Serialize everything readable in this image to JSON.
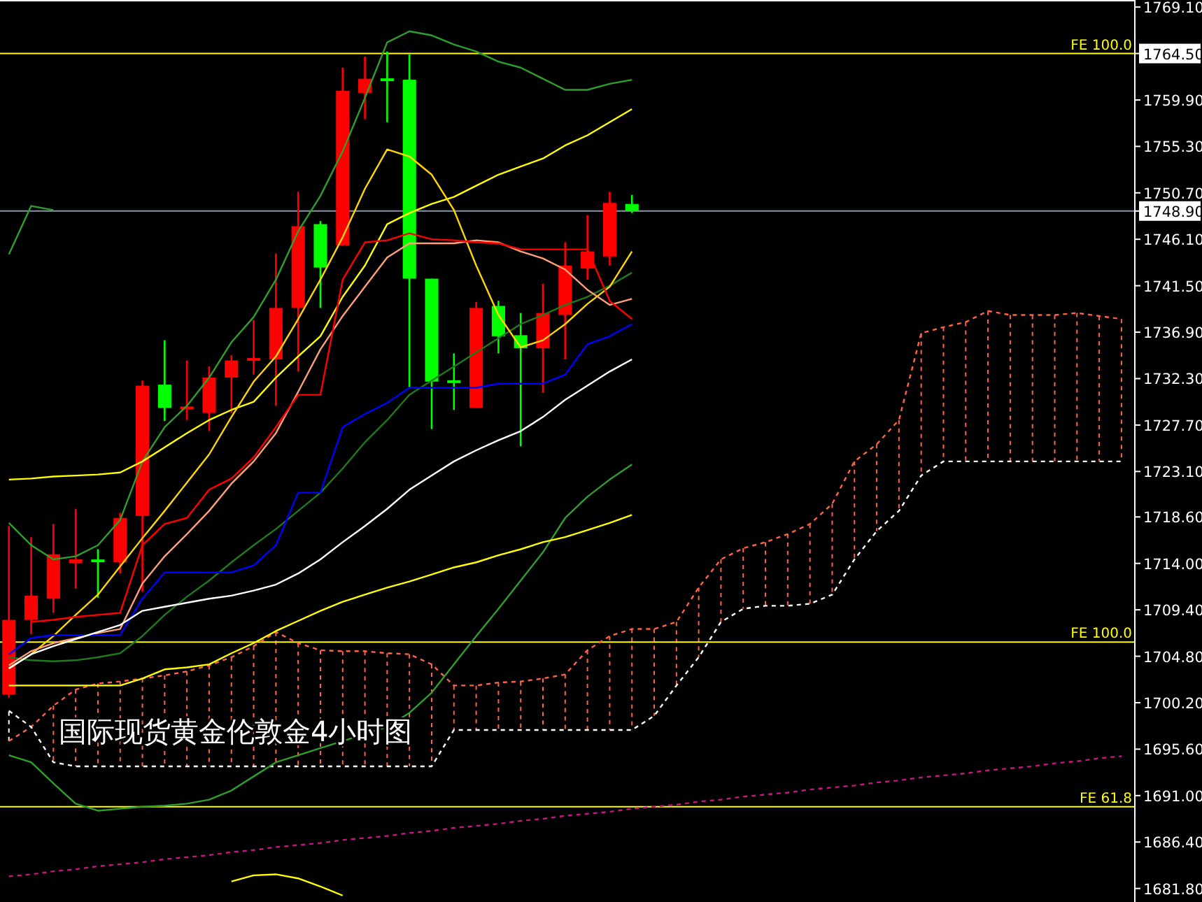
{
  "chart_data": {
    "type": "candlestick",
    "title": "国际现货黄金伦敦金4小时图",
    "categories": [
      null,
      null,
      null,
      null,
      null,
      null,
      null,
      null,
      null,
      null,
      null,
      null,
      null,
      null,
      null,
      null,
      null,
      null,
      null,
      null,
      null,
      null,
      null,
      null,
      null,
      null,
      null,
      null,
      null,
      null,
      null,
      null,
      null,
      null,
      null,
      null,
      null,
      null,
      null,
      null,
      null,
      null,
      null,
      null,
      null,
      null,
      null,
      null,
      null,
      null,
      null
    ],
    "ohlc": [
      [
        1701.0,
        1717.7,
        1700.7,
        1708.4
      ],
      [
        1708.4,
        1716.6,
        1707.0,
        1710.8
      ],
      [
        1710.5,
        1717.9,
        1709.1,
        1714.9
      ],
      [
        1714.0,
        1719.4,
        1711.5,
        1714.4
      ],
      [
        1714.3,
        1715.4,
        1710.6,
        1714.2
      ],
      [
        1714.1,
        1719.0,
        1713.0,
        1718.5
      ],
      [
        1718.7,
        1732.1,
        1711.2,
        1731.6
      ],
      [
        1731.7,
        1736.1,
        1728.1,
        1729.4
      ],
      [
        1729.3,
        1734.1,
        1728.2,
        1729.5
      ],
      [
        1728.9,
        1733.5,
        1727.1,
        1732.4
      ],
      [
        1732.4,
        1734.6,
        1728.9,
        1734.1
      ],
      [
        1734.1,
        1738.1,
        1732.7,
        1734.3
      ],
      [
        1734.2,
        1744.7,
        1729.6,
        1739.3
      ],
      [
        1739.3,
        1750.8,
        1733.0,
        1747.4
      ],
      [
        1747.6,
        1747.9,
        1739.3,
        1743.3
      ],
      [
        1745.5,
        1763.1,
        1745.5,
        1760.8
      ],
      [
        1760.6,
        1764.2,
        1758.0,
        1762.0
      ],
      [
        1762.0,
        1764.7,
        1757.7,
        1761.8
      ],
      [
        1761.9,
        1764.4,
        1731.4,
        1742.2
      ],
      [
        1742.2,
        1742.2,
        1727.3,
        1732.0
      ],
      [
        1732.1,
        1734.8,
        1729.2,
        1731.9
      ],
      [
        1729.4,
        1739.9,
        1729.4,
        1739.3
      ],
      [
        1739.5,
        1740.0,
        1734.8,
        1736.5
      ],
      [
        1736.6,
        1738.8,
        1725.6,
        1735.3
      ],
      [
        1735.3,
        1741.7,
        1730.9,
        1738.8
      ],
      [
        1738.6,
        1745.8,
        1734.2,
        1743.5
      ],
      [
        1743.2,
        1748.5,
        1742.1,
        1744.9
      ],
      [
        1744.4,
        1750.8,
        1743.5,
        1749.7
      ],
      [
        1749.6,
        1750.5,
        1748.7,
        1748.9
      ],
      null,
      null,
      null,
      null,
      null,
      null,
      null,
      null,
      null,
      null,
      null,
      null,
      null,
      null,
      null,
      null,
      null,
      null,
      null,
      null,
      null,
      null
    ],
    "colors": [
      "#ff0000",
      "#ff0000",
      "#ff0000",
      "#ff0000",
      "#00ff00",
      "#ff0000",
      "#ff0000",
      "#00ff00",
      "#ff0000",
      "#ff0000",
      "#ff0000",
      "#ff0000",
      "#ff0000",
      "#ff0000",
      "#00ff00",
      "#ff0000",
      "#ff0000",
      "#00ff00",
      "#00ff00",
      "#00ff00",
      "#00ff00",
      "#ff0000",
      "#00ff00",
      "#00ff00",
      "#ff0000",
      "#ff0000",
      "#ff0000",
      "#ff0000",
      "#00ff00",
      null,
      null,
      null,
      null,
      null,
      null,
      null,
      null,
      null,
      null,
      null,
      null,
      null,
      null,
      null,
      null,
      null,
      null,
      null,
      null,
      null,
      null
    ],
    "series": [
      {
        "type": "line",
        "color": "#ff6347",
        "line_style": "dashed",
        "values": [
          1696.4,
          1697.8,
          1699.9,
          1701.5,
          1702.1,
          1702.3,
          1702.6,
          1702.9,
          1703.3,
          1703.9,
          1704.7,
          1705.8,
          1707.2,
          1706.1,
          1705.4,
          1705.3,
          1705.3,
          1705.1,
          1705.0,
          1704.0,
          1701.9,
          1701.9,
          1702.2,
          1702.3,
          1702.6,
          1703.0,
          1705.4,
          1706.8,
          1707.5,
          1707.5,
          1708.2,
          1711.6,
          1714.4,
          1715.5,
          1716.1,
          1716.9,
          1717.9,
          1719.9,
          1724.1,
          1725.8,
          1728.2,
          1736.8,
          1737.4,
          1737.9,
          1739.0,
          1738.6,
          1738.6,
          1738.6,
          1738.8,
          1738.5,
          1738.2
        ]
      },
      {
        "type": "line",
        "color": "#ffffff",
        "line_style": "dashed",
        "values": [
          1699.4,
          1697.8,
          1694.3,
          1693.9,
          1693.9,
          1693.9,
          1693.9,
          1693.9,
          1693.9,
          1693.9,
          1693.9,
          1693.9,
          1693.9,
          1693.9,
          1693.9,
          1693.9,
          1693.9,
          1693.9,
          1693.9,
          1693.9,
          1697.5,
          1697.5,
          1697.5,
          1697.5,
          1697.5,
          1697.5,
          1697.5,
          1697.5,
          1697.5,
          1698.9,
          1701.9,
          1704.7,
          1708.2,
          1709.5,
          1709.8,
          1709.8,
          1710.0,
          1710.9,
          1714.4,
          1717.2,
          1719.2,
          1722.7,
          1724.1,
          1724.1,
          1724.1,
          1724.1,
          1724.1,
          1724.1,
          1724.1,
          1724.1,
          1724.1
        ]
      },
      {
        "type": "line",
        "color": "#c71585",
        "line_style": "dashed",
        "values": [
          1683.0,
          1683.2,
          1683.5,
          1683.7,
          1684.0,
          1684.2,
          1684.4,
          1684.7,
          1684.9,
          1685.1,
          1685.4,
          1685.6,
          1685.9,
          1686.1,
          1686.3,
          1686.6,
          1686.8,
          1687.0,
          1687.3,
          1687.5,
          1687.8,
          1688.0,
          1688.2,
          1688.5,
          1688.7,
          1689.0,
          1689.2,
          1689.4,
          1689.7,
          1689.9,
          1690.1,
          1690.4,
          1690.6,
          1690.9,
          1691.1,
          1691.3,
          1691.6,
          1691.8,
          1692.0,
          1692.3,
          1692.5,
          1692.8,
          1693.0,
          1693.2,
          1693.5,
          1693.7,
          1693.9,
          1694.2,
          1694.4,
          1694.7,
          1694.9
        ]
      },
      {
        "type": "line",
        "color": "#2f9e2f",
        "values": [
          1718.0,
          1715.8,
          1714.4,
          1714.7,
          1715.8,
          1718.3,
          1724.1,
          1727.5,
          1729.6,
          1732.4,
          1735.9,
          1738.4,
          1742.1,
          1746.9,
          1750.4,
          1754.8,
          1760.1,
          1765.6,
          1766.7,
          1766.3,
          1765.4,
          1764.7,
          1763.7,
          1763.1,
          1762.0,
          1760.9,
          1760.9,
          1761.5,
          1761.9,
          null,
          null,
          null,
          null,
          null,
          null,
          null,
          null,
          null,
          null,
          null,
          null,
          null,
          null,
          null,
          null,
          null,
          null,
          null,
          null,
          null,
          null
        ]
      },
      {
        "type": "line",
        "color": "#2f9e2f",
        "values": [
          1744.6,
          1749.4,
          1749.0,
          null,
          null,
          null,
          null,
          null,
          null,
          null,
          null,
          null,
          null,
          null,
          null,
          null,
          null,
          null,
          null,
          null,
          null,
          null,
          null,
          null,
          null,
          null,
          null,
          null,
          null,
          null,
          null,
          null,
          null,
          null,
          null,
          null,
          null,
          null,
          null,
          null,
          null,
          null,
          null,
          null,
          null,
          null,
          null,
          null,
          null,
          null,
          null
        ]
      },
      {
        "type": "line",
        "color": "#2f9e2f",
        "values": [
          1695.0,
          1694.3,
          1692.2,
          1690.2,
          1689.5,
          1689.7,
          1689.9,
          1690.0,
          1690.2,
          1690.6,
          1691.5,
          1692.9,
          1694.3,
          1695.0,
          1695.7,
          1696.4,
          1697.1,
          1697.8,
          1699.2,
          1701.2,
          1704.0,
          1706.8,
          1709.5,
          1712.3,
          1715.1,
          1718.5,
          1720.6,
          1722.3,
          1723.8,
          null,
          null,
          null,
          null,
          null,
          null,
          null,
          null,
          null,
          null,
          null,
          null,
          null,
          null,
          null,
          null,
          null,
          null,
          null,
          null,
          null,
          null
        ]
      },
      {
        "type": "line",
        "color": "#1f7a1f",
        "values": [
          1704.7,
          1704.4,
          1704.3,
          1704.4,
          1704.7,
          1705.1,
          1706.8,
          1708.9,
          1710.7,
          1712.3,
          1714.1,
          1715.8,
          1717.4,
          1719.2,
          1721.0,
          1723.4,
          1726.0,
          1728.2,
          1730.7,
          1732.1,
          1733.5,
          1734.9,
          1736.3,
          1737.7,
          1738.6,
          1739.6,
          1740.4,
          1741.5,
          1742.8,
          null,
          null,
          null,
          null,
          null,
          null,
          null,
          null,
          null,
          null,
          null,
          null,
          null,
          null,
          null,
          null,
          null,
          null,
          null,
          null,
          null,
          null
        ]
      },
      {
        "type": "line",
        "color": "#ffff00",
        "values": [
          1701.9,
          1701.9,
          1701.9,
          1701.9,
          1701.9,
          1701.9,
          1702.6,
          1703.5,
          1703.7,
          1704.0,
          1705.1,
          1706.1,
          1707.3,
          1708.3,
          1709.3,
          1710.2,
          1710.9,
          1711.6,
          1712.2,
          1712.9,
          1713.6,
          1714.1,
          1714.8,
          1715.4,
          1716.1,
          1716.6,
          1717.3,
          1718.0,
          1718.8,
          null,
          null,
          null,
          null,
          null,
          null,
          null,
          null,
          null,
          null,
          null,
          null,
          null,
          null,
          null,
          null,
          null,
          null,
          null,
          null,
          null,
          null
        ]
      },
      {
        "type": "line",
        "color": "#ffff00",
        "values": [
          null,
          null,
          null,
          null,
          null,
          null,
          null,
          null,
          null,
          null,
          1682.5,
          1683.1,
          1683.2,
          1682.8,
          1682.0,
          1681.1,
          null,
          null,
          null,
          null,
          null,
          null,
          null,
          null,
          null,
          null,
          null,
          null,
          null,
          null,
          null,
          null,
          null,
          null,
          null,
          null,
          null,
          null,
          null,
          null,
          null,
          null,
          null,
          null,
          null,
          null,
          null,
          null,
          null,
          null,
          null
        ]
      },
      {
        "type": "line",
        "color": "#ffff00",
        "values": [
          1722.3,
          1722.4,
          1722.6,
          1722.7,
          1722.8,
          1723.0,
          1724.1,
          1725.5,
          1726.9,
          1728.2,
          1729.2,
          1730.0,
          1732.4,
          1734.5,
          1736.5,
          1740.4,
          1743.5,
          1747.6,
          1748.7,
          1749.6,
          1750.3,
          1751.4,
          1752.5,
          1753.3,
          1754.1,
          1755.4,
          1756.4,
          1757.7,
          1759.0,
          null,
          null,
          null,
          null,
          null,
          null,
          null,
          null,
          null,
          null,
          null,
          null,
          null,
          null,
          null,
          null,
          null,
          null,
          null,
          null,
          null,
          null
        ]
      },
      {
        "type": "line",
        "color": "#ffd700",
        "values": [
          1703.6,
          1705.0,
          1706.8,
          1708.9,
          1710.9,
          1713.7,
          1716.5,
          1719.2,
          1722.0,
          1724.8,
          1728.5,
          1732.0,
          1734.5,
          1738.2,
          1742.1,
          1746.3,
          1751.1,
          1755.0,
          1754.3,
          1752.5,
          1749.0,
          1743.5,
          1738.6,
          1735.4,
          1736.1,
          1737.7,
          1739.7,
          1741.4,
          1744.9,
          null,
          null,
          null,
          null,
          null,
          null,
          null,
          null,
          null,
          null,
          null,
          null,
          null,
          null,
          null,
          null,
          null,
          null,
          null,
          null,
          null,
          null
        ]
      },
      {
        "type": "line",
        "color": "#ffa07a",
        "values": [
          1703.9,
          1705.3,
          1706.1,
          1706.6,
          1707.1,
          1707.5,
          1712.0,
          1714.7,
          1716.9,
          1719.2,
          1721.9,
          1724.1,
          1726.9,
          1731.0,
          1735.2,
          1738.5,
          1741.4,
          1744.3,
          1745.7,
          1745.7,
          1745.7,
          1746.0,
          1745.8,
          1744.9,
          1744.2,
          1743.1,
          1741.1,
          1739.6,
          1740.2,
          null,
          null,
          null,
          null,
          null,
          null,
          null,
          null,
          null,
          null,
          null,
          null,
          null,
          null,
          null,
          null,
          null,
          null,
          null,
          null,
          null,
          null
        ]
      },
      {
        "type": "line",
        "color": "#ff0000",
        "values": [
          null,
          1708.2,
          1708.4,
          1708.7,
          1708.9,
          1709.1,
          1715.8,
          1717.9,
          1718.5,
          1721.3,
          1722.4,
          1724.5,
          1727.5,
          1730.7,
          1730.7,
          1742.1,
          1745.8,
          1746.0,
          1746.7,
          1746.1,
          1746.0,
          1745.8,
          1745.7,
          1745.1,
          1745.1,
          1745.1,
          1745.1,
          1740.0,
          1738.2,
          null,
          null,
          null,
          null,
          null,
          null,
          null,
          null,
          null,
          null,
          null,
          null,
          null,
          null,
          null,
          null,
          null,
          null,
          null,
          null,
          null,
          null
        ]
      },
      {
        "type": "line",
        "color": "#0000ff",
        "values": [
          1705.0,
          1706.6,
          1706.9,
          1706.9,
          1706.9,
          1706.9,
          1710.5,
          1713.1,
          1713.1,
          1713.1,
          1713.1,
          1713.8,
          1715.8,
          1721.0,
          1721.0,
          1727.5,
          1728.8,
          1729.9,
          1731.4,
          1731.4,
          1731.4,
          1731.4,
          1731.8,
          1731.8,
          1731.8,
          1732.7,
          1735.7,
          1736.5,
          1737.7,
          null,
          null,
          null,
          null,
          null,
          null,
          null,
          null,
          null,
          null,
          null,
          null,
          null,
          null,
          null,
          null,
          null,
          null,
          null,
          null,
          null,
          null
        ]
      },
      {
        "type": "line",
        "color": "#ffffff",
        "values": [
          1703.6,
          1705.0,
          1705.8,
          1706.5,
          1707.2,
          1707.9,
          1709.3,
          1709.7,
          1710.1,
          1710.5,
          1710.8,
          1711.3,
          1711.9,
          1713.0,
          1714.4,
          1716.1,
          1717.7,
          1719.4,
          1721.3,
          1722.7,
          1724.1,
          1725.2,
          1726.2,
          1727.1,
          1728.5,
          1730.2,
          1731.6,
          1733.0,
          1734.2,
          null,
          null,
          null,
          null,
          null,
          null,
          null,
          null,
          null,
          null,
          null,
          null,
          null,
          null,
          null,
          null,
          null,
          null,
          null,
          null,
          null,
          null
        ]
      }
    ],
    "ylim": [
      1680.46,
      1769.8
    ],
    "yticks": [
      {
        "value": 1769.1,
        "label": "1769.10"
      },
      {
        "value": 1764.5,
        "label": "1764.50"
      },
      {
        "value": 1759.9,
        "label": "1759.90"
      },
      {
        "value": 1755.3,
        "label": "1755.30"
      },
      {
        "value": 1750.7,
        "label": "1750.70"
      },
      {
        "value": 1746.1,
        "label": "1746.10"
      },
      {
        "value": 1741.5,
        "label": "1741.50"
      },
      {
        "value": 1736.9,
        "label": "1736.90"
      },
      {
        "value": 1732.3,
        "label": "1732.30"
      },
      {
        "value": 1727.7,
        "label": "1727.70"
      },
      {
        "value": 1723.1,
        "label": "1723.10"
      },
      {
        "value": 1718.6,
        "label": "1718.60"
      },
      {
        "value": 1714.0,
        "label": "1714.00"
      },
      {
        "value": 1709.4,
        "label": "1709.40"
      },
      {
        "value": 1704.8,
        "label": "1704.80"
      },
      {
        "value": 1700.2,
        "label": "1700.20"
      },
      {
        "value": 1695.6,
        "label": "1695.60"
      },
      {
        "value": 1691.0,
        "label": "1691.00"
      },
      {
        "value": 1686.4,
        "label": "1686.40"
      },
      {
        "value": 1681.8,
        "label": "1681.80"
      },
      {
        "value": 1748.9,
        "label": "1748.90"
      }
    ],
    "ref_lines": [
      {
        "axis": "y",
        "value": 1764.5,
        "label": "FE 100.0",
        "color": "#ffff00"
      },
      {
        "axis": "y",
        "value": 1706.2,
        "label": "FE 100.0",
        "color": "#ffff00"
      },
      {
        "axis": "y",
        "value": 1689.9,
        "label": "FE 61.8",
        "color": "#ffff00"
      },
      {
        "axis": "y",
        "value": 1748.9,
        "color": "#8795a8"
      }
    ],
    "tick_labels": "y",
    "grid": false
  }
}
